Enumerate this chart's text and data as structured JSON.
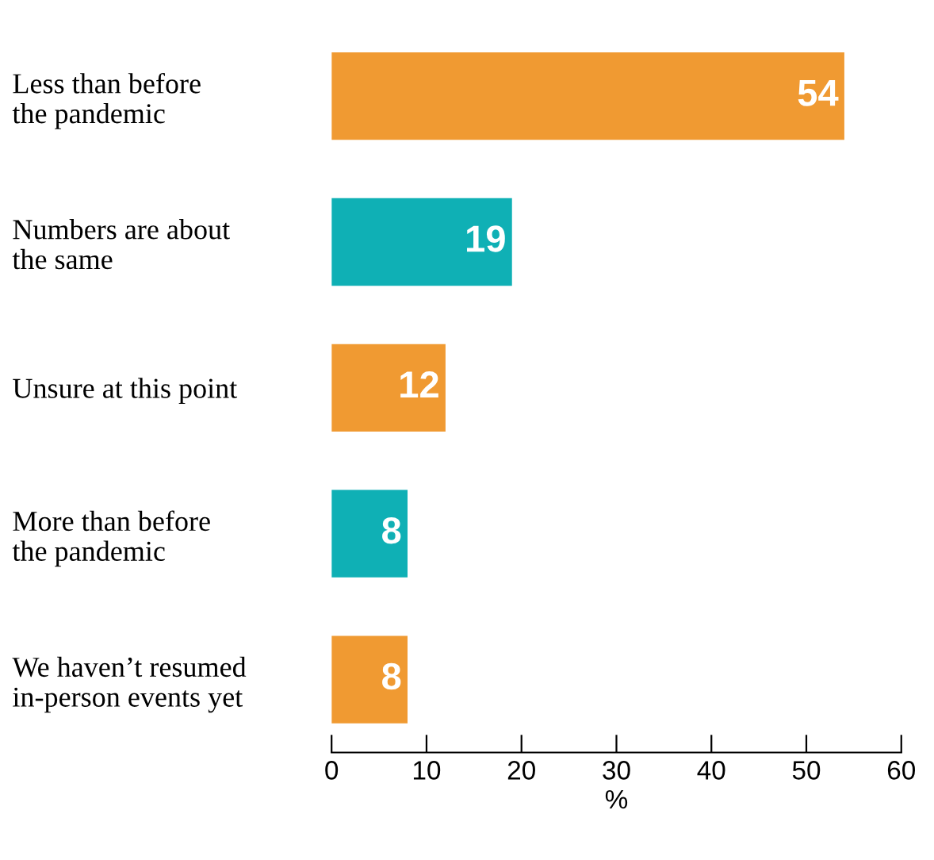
{
  "chart_data": {
    "type": "bar",
    "orientation": "horizontal",
    "categories": [
      "Less than before\nthe pandemic",
      "Numbers are about\nthe same",
      "Unsure at this point",
      "More than before\nthe pandemic",
      "We haven’t resumed\nin-person events yet"
    ],
    "values": [
      54,
      19,
      12,
      8,
      8
    ],
    "colors": [
      "#f09a32",
      "#0fb0b5",
      "#f09a32",
      "#0fb0b5",
      "#f09a32"
    ],
    "xlabel": "%",
    "xlim": [
      0,
      60
    ],
    "xticks": [
      0,
      10,
      20,
      30,
      40,
      50,
      60
    ],
    "data_labels": true,
    "grid": false,
    "legend": false
  }
}
